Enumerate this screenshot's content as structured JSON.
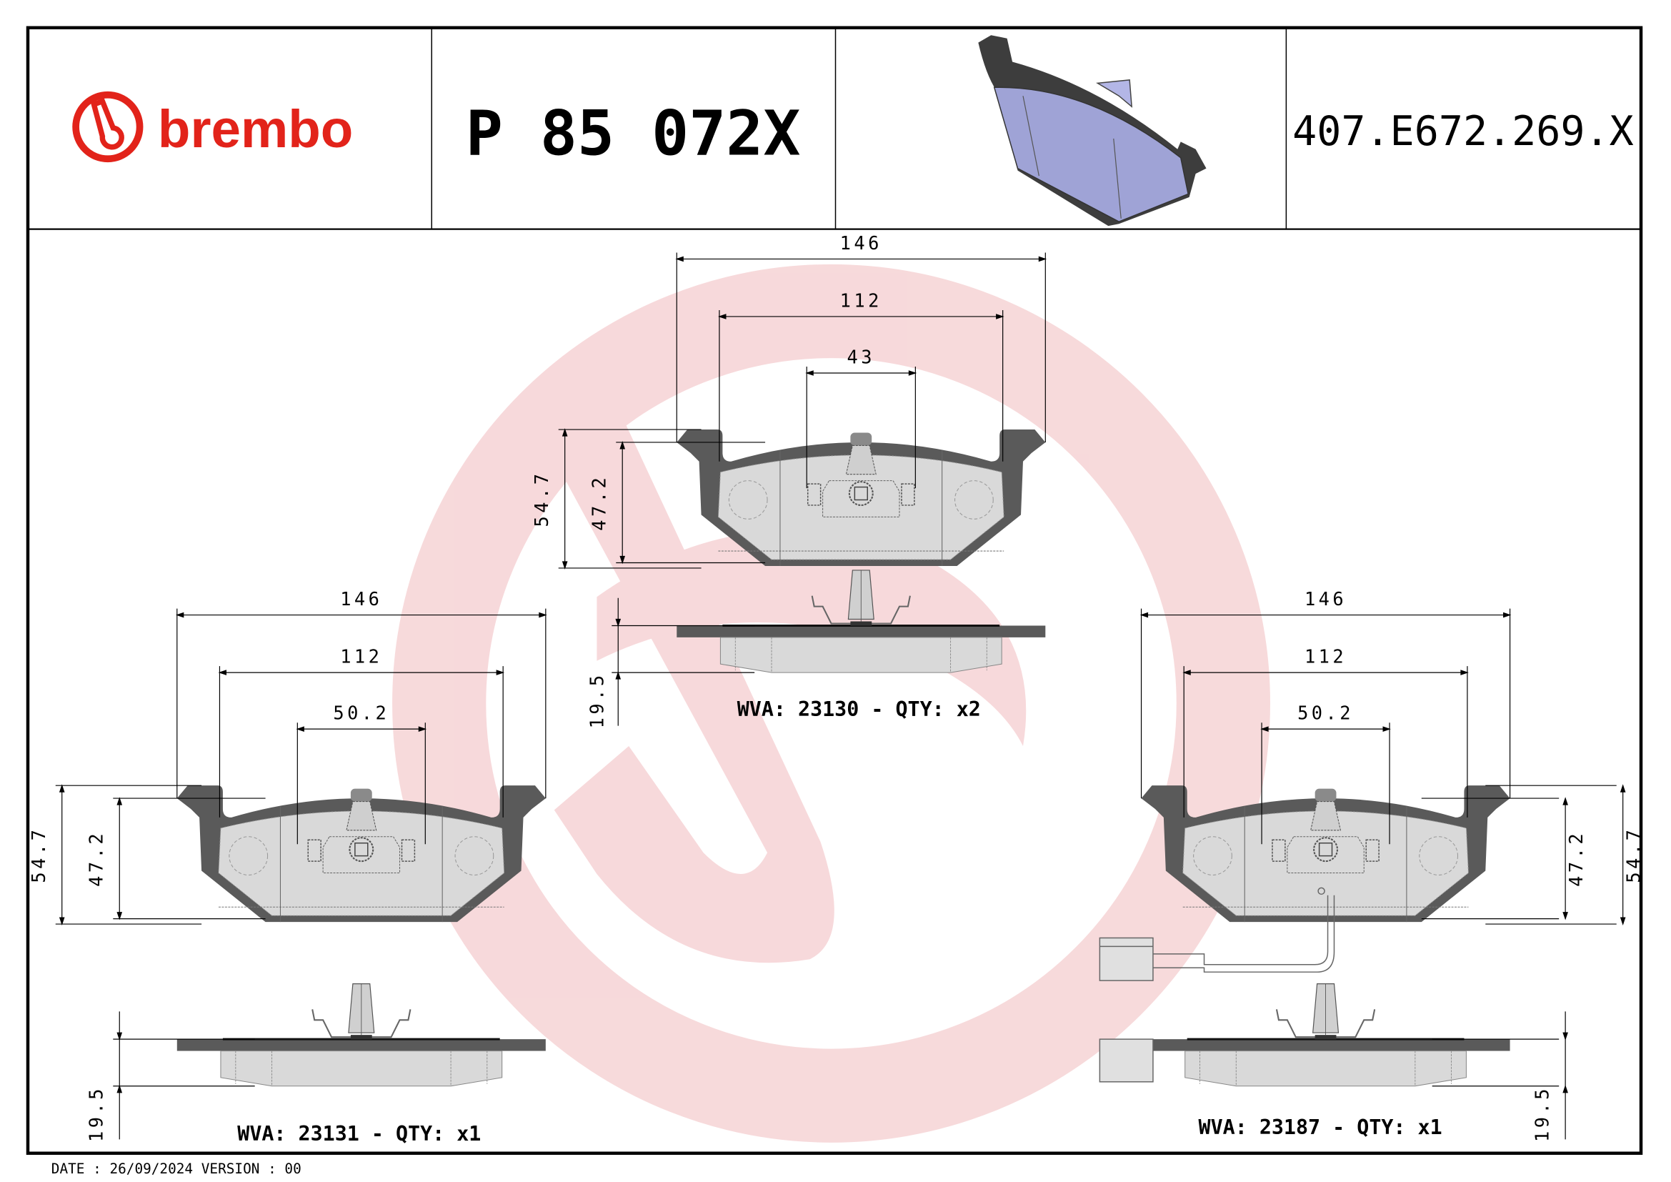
{
  "header": {
    "brand": "brembo",
    "part_number": "P 85 072X",
    "reference": "407.E672.269.X"
  },
  "colors": {
    "brand_red": "#e2231a",
    "watermark": "#f6d3d5",
    "pad_dark": "#5a5a5a",
    "pad_light": "#d9d9d9",
    "iso_pad_fill": "#9fa3d6"
  },
  "views": {
    "center": {
      "dims": {
        "width_total": "146",
        "width_body": "112",
        "width_center": "43",
        "height_total": "54.7",
        "height_body": "47.2",
        "thickness": "19.5"
      },
      "label": "WVA: 23130 - QTY: x2"
    },
    "left": {
      "dims": {
        "width_total": "146",
        "width_body": "112",
        "width_center": "50.2",
        "height_total": "54.7",
        "height_body": "47.2",
        "thickness": "19.5"
      },
      "label": "WVA: 23131 - QTY: x1"
    },
    "right": {
      "dims": {
        "width_total": "146",
        "width_body": "112",
        "width_center": "50.2",
        "height_total": "54.7",
        "height_body": "47.2",
        "thickness": "19.5"
      },
      "label": "WVA: 23187 - QTY: x1",
      "wear_sensor": true
    }
  },
  "footer": {
    "date_version": "DATE : 26/09/2024 VERSION : 00"
  }
}
